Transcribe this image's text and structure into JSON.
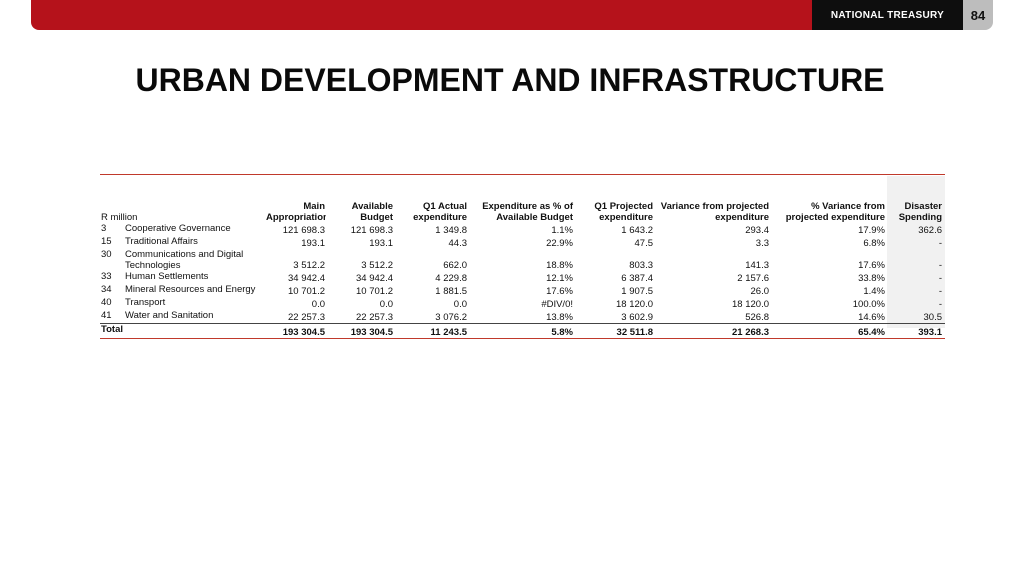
{
  "header": {
    "brand": "NATIONAL TREASURY",
    "page_number": "84"
  },
  "title": "URBAN DEVELOPMENT AND INFRASTRUCTURE",
  "table": {
    "unit_label": "R million",
    "columns": [
      "Main Appropriation",
      "Available Budget",
      "Q1 Actual expenditure",
      "Expenditure as % of Available Budget",
      "Q1 Projected expenditure",
      "Variance from projected expenditure",
      "% Variance from projected expenditure",
      "Disaster Spending"
    ],
    "rows": [
      {
        "code": "3",
        "name": "Cooperative Governance",
        "cells": [
          "121 698.3",
          "121 698.3",
          "1 349.8",
          "1.1%",
          "1 643.2",
          "293.4",
          "17.9%",
          "362.6"
        ]
      },
      {
        "code": "15",
        "name": "Traditional Affairs",
        "cells": [
          "193.1",
          "193.1",
          "44.3",
          "22.9%",
          "47.5",
          "3.3",
          "6.8%",
          "-"
        ]
      },
      {
        "code": "30",
        "name": "Communications and Digital Technologies",
        "cells": [
          "3 512.2",
          "3 512.2",
          "662.0",
          "18.8%",
          "803.3",
          "141.3",
          "17.6%",
          "-"
        ]
      },
      {
        "code": "33",
        "name": "Human Settlements",
        "cells": [
          "34 942.4",
          "34 942.4",
          "4 229.8",
          "12.1%",
          "6 387.4",
          "2 157.6",
          "33.8%",
          "-"
        ]
      },
      {
        "code": "34",
        "name": "Mineral Resources and Energy",
        "cells": [
          "10 701.2",
          "10 701.2",
          "1 881.5",
          "17.6%",
          "1 907.5",
          "26.0",
          "1.4%",
          "-"
        ]
      },
      {
        "code": "40",
        "name": "Transport",
        "cells": [
          "0.0",
          "0.0",
          "0.0",
          "#DIV/0!",
          "18 120.0",
          "18 120.0",
          "100.0%",
          "-"
        ]
      },
      {
        "code": "41",
        "name": "Water and Sanitation",
        "cells": [
          "22 257.3",
          "22 257.3",
          "3 076.2",
          "13.8%",
          "3 602.9",
          "526.8",
          "14.6%",
          "30.5"
        ]
      }
    ],
    "total": {
      "label": "Total",
      "cells": [
        "193 304.5",
        "193 304.5",
        "11 243.5",
        "5.8%",
        "32 511.8",
        "21 268.3",
        "65.4%",
        "393.1"
      ]
    }
  }
}
